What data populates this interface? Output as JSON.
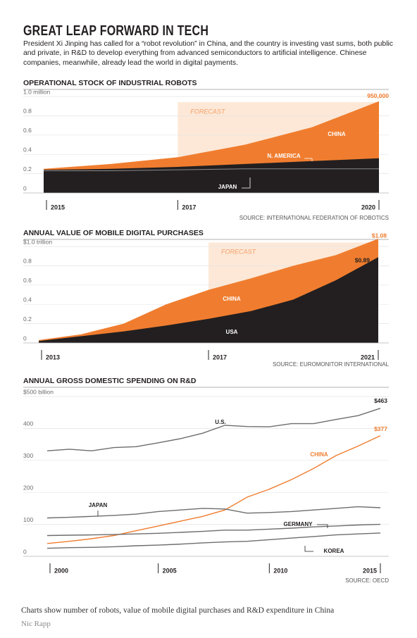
{
  "header": {
    "title": "GREAT LEAP FORWARD IN TECH",
    "intro": "President Xi Jinping has called for a “robot revolution” in China, and the country is investing vast sums, both public and private, in R&D to develop everything from advanced semiconductors to artificial intelligence. Chinese companies, meanwhile, already lead the world in digital payments."
  },
  "chart_data": [
    {
      "type": "area",
      "title": "OPERATIONAL STOCK OF INDUSTRIAL ROBOTS",
      "x": [
        2015,
        2016,
        2017,
        2018,
        2019,
        2020
      ],
      "xlim": [
        2015,
        2020
      ],
      "xticks": [
        2015,
        2017,
        2020
      ],
      "ylim": [
        0,
        1.0
      ],
      "yticks": [
        {
          "value": 1.0,
          "label": "1.0 million"
        },
        0.8,
        0.6,
        0.4,
        0.2,
        0
      ],
      "grid": true,
      "forecast": {
        "label": "FORECAST",
        "start": 2017
      },
      "source": "SOURCE: INTERNATIONAL FEDERATION OF ROBOTICS",
      "series": [
        {
          "name": "CHINA",
          "color": "#f07d2f",
          "values": [
            0.25,
            0.3,
            0.37,
            0.5,
            0.68,
            0.95
          ],
          "value_labels": [
            null,
            null,
            null,
            null,
            null,
            "950,000"
          ]
        },
        {
          "name": "N. AMERICA",
          "color": "#231f20",
          "values": [
            0.24,
            0.25,
            0.27,
            0.3,
            0.33,
            0.36
          ]
        },
        {
          "name": "JAPAN",
          "color": "#8a8a8a",
          "kind": "line",
          "values": [
            0.23,
            0.23,
            0.24,
            0.25,
            0.25,
            0.25
          ]
        }
      ]
    },
    {
      "type": "area",
      "title": "ANNUAL VALUE OF MOBILE DIGITAL PURCHASES",
      "x": [
        2013,
        2014,
        2015,
        2016,
        2017,
        2018,
        2019,
        2020,
        2021
      ],
      "xlim": [
        2013,
        2021
      ],
      "xticks": [
        2013,
        2017,
        2021
      ],
      "ylim": [
        0,
        1.1
      ],
      "yticks": [
        {
          "value": 1.0,
          "label": "$1.0 trillion"
        },
        0.8,
        0.6,
        0.4,
        0.2,
        0
      ],
      "grid": true,
      "forecast": {
        "label": "FORECAST",
        "start": 2017
      },
      "source": "SOURCE: EUROMONITOR INTERNATIONAL",
      "series": [
        {
          "name": "CHINA",
          "color": "#f07d2f",
          "values": [
            0.03,
            0.09,
            0.2,
            0.4,
            0.55,
            0.67,
            0.8,
            0.91,
            1.08
          ],
          "value_labels": [
            null,
            null,
            null,
            null,
            null,
            null,
            null,
            null,
            "$1.08"
          ]
        },
        {
          "name": "USA",
          "color": "#231f20",
          "values": [
            0.02,
            0.07,
            0.12,
            0.18,
            0.25,
            0.33,
            0.45,
            0.65,
            0.89
          ],
          "value_labels": [
            null,
            null,
            null,
            null,
            null,
            null,
            null,
            null,
            "$0.89"
          ]
        }
      ]
    },
    {
      "type": "line",
      "title": "ANNUAL GROSS DOMESTIC SPENDING ON R&D",
      "x": [
        2000,
        2001,
        2002,
        2003,
        2004,
        2005,
        2006,
        2007,
        2008,
        2009,
        2010,
        2011,
        2012,
        2013,
        2014,
        2015
      ],
      "xlim": [
        2000,
        2015
      ],
      "xticks": [
        2000,
        2005,
        2010,
        2015
      ],
      "ylim": [
        0,
        500
      ],
      "yticks": [
        {
          "value": 500,
          "label": "$500 billion"
        },
        400,
        300,
        200,
        100,
        0
      ],
      "grid": true,
      "source": "SOURCE: OECD",
      "series": [
        {
          "name": "U.S.",
          "color": "#6d6d6d",
          "values": [
            330,
            335,
            330,
            340,
            343,
            355,
            368,
            385,
            410,
            406,
            405,
            415,
            415,
            428,
            440,
            463
          ],
          "value_labels": [
            null,
            null,
            null,
            null,
            null,
            null,
            null,
            null,
            null,
            null,
            null,
            null,
            null,
            null,
            null,
            "$463"
          ]
        },
        {
          "name": "CHINA",
          "color": "#f07d2f",
          "values": [
            40,
            47,
            55,
            65,
            80,
            95,
            110,
            125,
            145,
            185,
            210,
            240,
            275,
            315,
            345,
            377
          ],
          "value_labels": [
            null,
            null,
            null,
            null,
            null,
            null,
            null,
            null,
            null,
            null,
            null,
            null,
            null,
            null,
            null,
            "$377"
          ]
        },
        {
          "name": "JAPAN",
          "color": "#6d6d6d",
          "values": [
            120,
            122,
            125,
            128,
            132,
            140,
            145,
            150,
            148,
            135,
            137,
            140,
            145,
            150,
            155,
            152
          ]
        },
        {
          "name": "GERMANY",
          "color": "#6d6d6d",
          "values": [
            65,
            66,
            67,
            68,
            70,
            72,
            75,
            78,
            82,
            82,
            85,
            88,
            92,
            95,
            98,
            100
          ]
        },
        {
          "name": "KOREA",
          "color": "#6d6d6d",
          "values": [
            25,
            27,
            28,
            30,
            33,
            35,
            38,
            42,
            45,
            47,
            52,
            57,
            62,
            67,
            70,
            73
          ]
        }
      ]
    }
  ],
  "caption": "Charts show number of robots, value of mobile digital purchases and R&D expenditure in China",
  "credit": "Nic Rapp"
}
